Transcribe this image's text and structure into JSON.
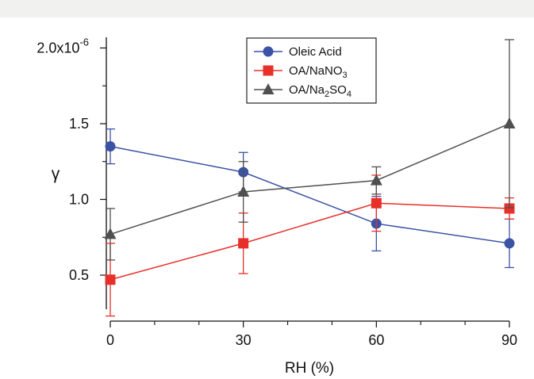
{
  "chart_data": {
    "type": "line",
    "xlabel": "RH (%)",
    "ylabel": "γ",
    "y_scale_label": "2.0x10",
    "y_scale_exponent": "-6",
    "xlim": [
      0,
      90
    ],
    "ylim": [
      0.25,
      2.05
    ],
    "x_ticks": [
      "0",
      "30",
      "60",
      "90"
    ],
    "y_ticks": [
      "0.5",
      "1.0",
      "1.5"
    ],
    "grid": false,
    "legend_position": "top-center",
    "x": [
      0,
      30,
      60,
      90
    ],
    "series": [
      {
        "name": "Oleic Acid",
        "legend_label": {
          "base": "Oleic Acid",
          "sub": "",
          "tail": ""
        },
        "color": "#3b53a4",
        "marker": "circle",
        "values": [
          1.35,
          1.18,
          0.84,
          0.71
        ],
        "errors": [
          0.115,
          0.13,
          0.18,
          0.16
        ]
      },
      {
        "name": "OA/NaNO3",
        "legend_label": {
          "base": "OA/NaNO",
          "sub": "3",
          "tail": ""
        },
        "color": "#e8302a",
        "marker": "square",
        "values": [
          0.47,
          0.71,
          0.975,
          0.94
        ],
        "errors": [
          0.24,
          0.2,
          0.185,
          0.07
        ]
      },
      {
        "name": "OA/Na2SO4",
        "legend_label": {
          "base": "OA/Na",
          "sub": "2",
          "tail": "SO"
        },
        "legend_sub2": "4",
        "color": "#505050",
        "marker": "triangle",
        "values": [
          0.77,
          1.05,
          1.125,
          1.5
        ],
        "errors": [
          0.17,
          0.2,
          0.09,
          0.555
        ]
      }
    ]
  }
}
